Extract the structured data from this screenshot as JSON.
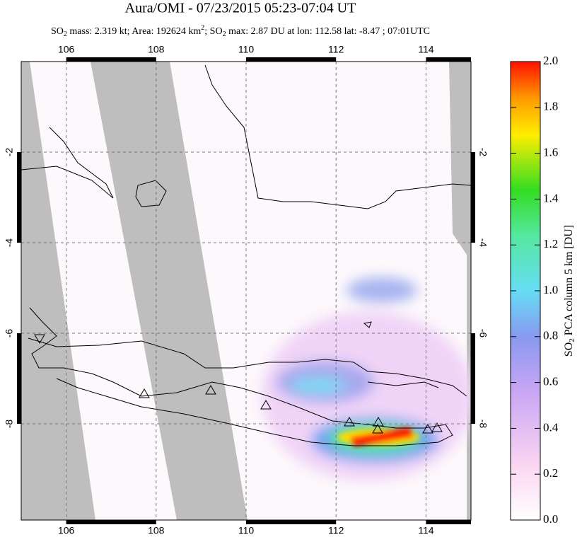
{
  "header": {
    "title": "Aura/OMI - 07/23/2015 05:23-07:04 UT",
    "subtitle": [
      "SO",
      "2",
      " mass: 2.319 kt; Area: 192624 km",
      "2",
      "; SO",
      "2",
      " max: 2.87 DU at lon: 112.58 lat: -8.47 ; 07:01UTC"
    ]
  },
  "map": {
    "lon_range": [
      105,
      115
    ],
    "lat_range": [
      0,
      -10.125
    ],
    "lon_ticks": [
      106,
      108,
      110,
      112,
      114
    ],
    "lat_ticks": [
      -2,
      -4,
      -6,
      -8
    ]
  },
  "colorbar": {
    "label": [
      "SO",
      "2",
      " PCA column 5 km [DU]"
    ],
    "range": [
      0,
      2
    ],
    "ticks": [
      {
        "value": 0,
        "label": "0.0"
      },
      {
        "value": 0.2,
        "label": "0.2"
      },
      {
        "value": 0.4,
        "label": "0.4"
      },
      {
        "value": 0.6,
        "label": "0.6"
      },
      {
        "value": 0.8,
        "label": "0.8"
      },
      {
        "value": 1,
        "label": "1.0"
      },
      {
        "value": 1.2,
        "label": "1.2"
      },
      {
        "value": 1.4,
        "label": "1.4"
      },
      {
        "value": 1.6,
        "label": "1.6"
      },
      {
        "value": 1.8,
        "label": "1.8"
      },
      {
        "value": 2,
        "label": "2.0"
      }
    ]
  }
}
